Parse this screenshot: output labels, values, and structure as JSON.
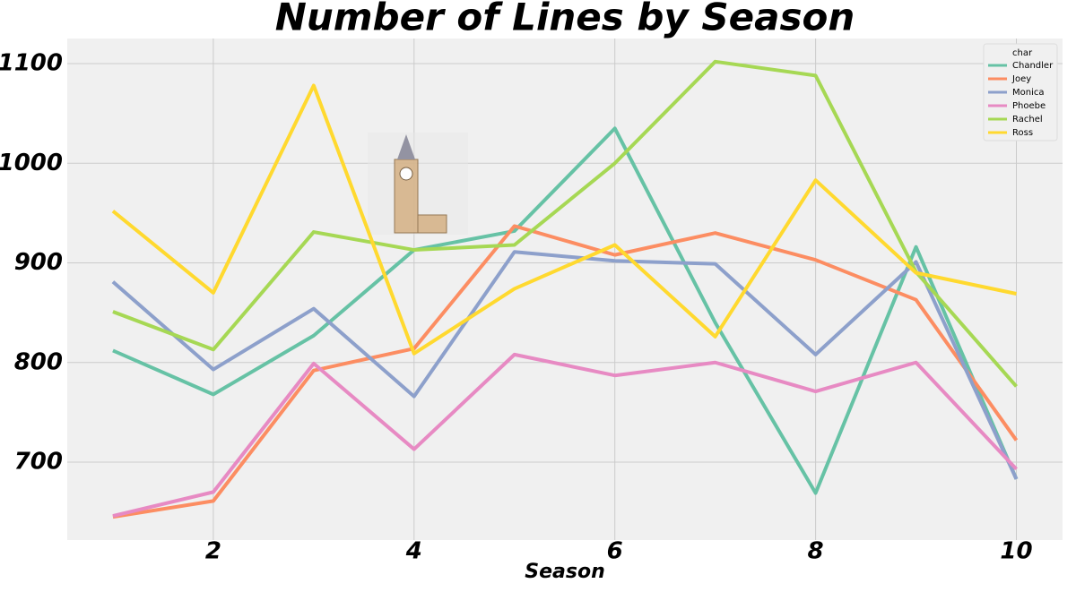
{
  "chart_data": {
    "type": "line",
    "title": "Number of Lines by Season",
    "x_label": "Season",
    "x": [
      1,
      2,
      3,
      4,
      5,
      6,
      7,
      8,
      9,
      10
    ],
    "xlim": [
      0.545,
      10.46
    ],
    "xticks": [
      2,
      4,
      6,
      8,
      10
    ],
    "ylim": [
      621.8,
      1125.2
    ],
    "yticks": [
      700,
      800,
      900,
      1000,
      1100
    ],
    "grid": true,
    "legend_title": "char",
    "legend_position": "upper right",
    "series": [
      {
        "name": "Chandler",
        "color": "#66c2a5",
        "values": [
          812,
          768,
          827,
          913,
          932,
          1035,
          840,
          669,
          916,
          683
        ]
      },
      {
        "name": "Joey",
        "color": "#fc8d62",
        "values": [
          645,
          661,
          792,
          814,
          937,
          908,
          930,
          903,
          863,
          722
        ]
      },
      {
        "name": "Monica",
        "color": "#8da0cb",
        "values": [
          881,
          793,
          854,
          766,
          911,
          902,
          899,
          808,
          901,
          683
        ]
      },
      {
        "name": "Phoebe",
        "color": "#e78ac3",
        "values": [
          646,
          670,
          799,
          713,
          808,
          787,
          800,
          771,
          800,
          693
        ]
      },
      {
        "name": "Rachel",
        "color": "#a6d854",
        "values": [
          851,
          813,
          931,
          913,
          918,
          1000,
          1102,
          1088,
          891,
          776
        ]
      },
      {
        "name": "Ross",
        "color": "#ffd92f",
        "values": [
          952,
          870,
          1078,
          809,
          874,
          918,
          826,
          983,
          890,
          869
        ]
      }
    ]
  }
}
